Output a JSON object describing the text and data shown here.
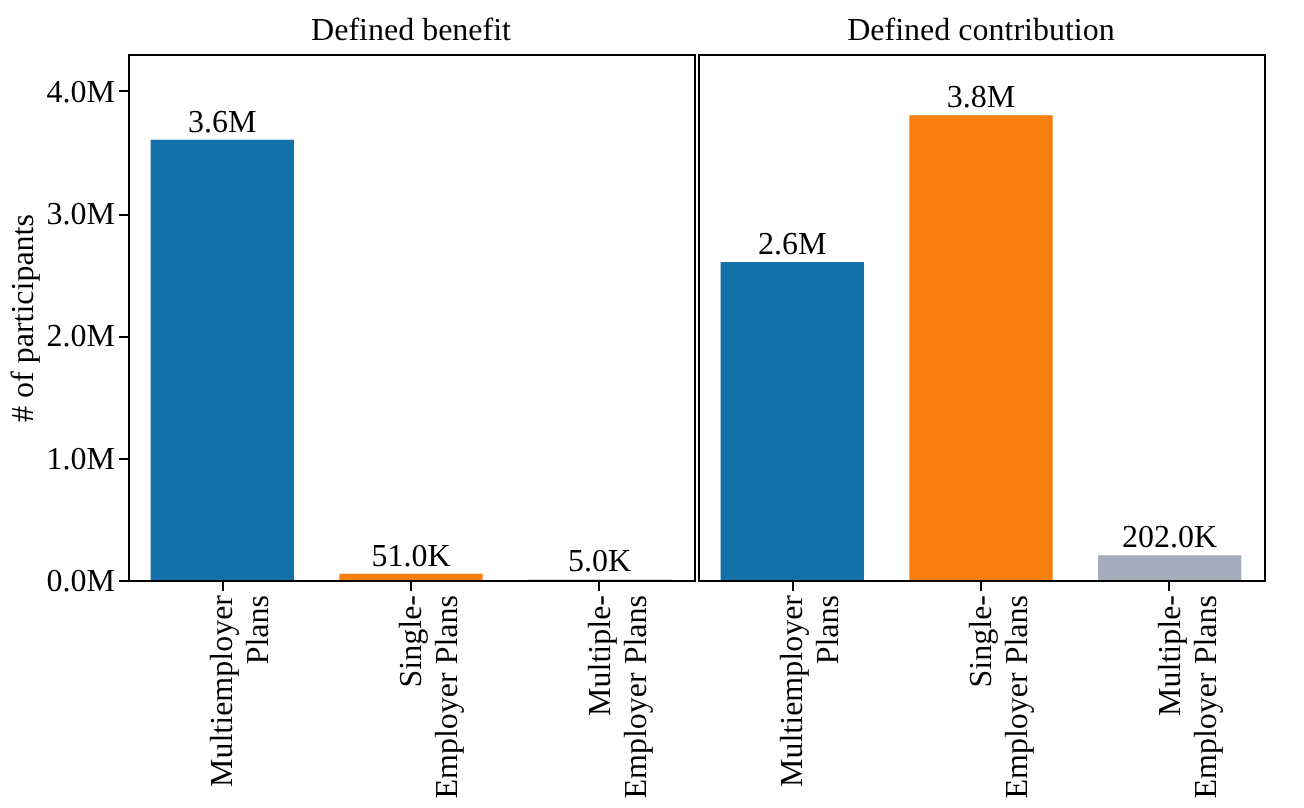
{
  "chart_data": [
    {
      "type": "bar",
      "title": "Defined benefit",
      "ylabel": "# of participants",
      "categories": [
        "Multiemployer Plans",
        "Single-Employer Plans",
        "Multiple-Employer Plans"
      ],
      "values": [
        3600000,
        51000,
        5000
      ],
      "colors": [
        "#1470a8",
        "#f78010",
        "#a3adbb"
      ],
      "value_labels": [
        "3.6M",
        "51.0K",
        "5.0K"
      ],
      "ylim": [
        0,
        4300000
      ],
      "yticks": [
        {
          "value": 0,
          "label": "0.0M"
        },
        {
          "value": 1000000,
          "label": "1.0M"
        },
        {
          "value": 2000000,
          "label": "2.0M"
        },
        {
          "value": 3000000,
          "label": "3.0M"
        },
        {
          "value": 4000000,
          "label": "4.0M"
        }
      ],
      "grid": false,
      "legend": false
    },
    {
      "type": "bar",
      "title": "Defined contribution",
      "categories": [
        "Multiemployer Plans",
        "Single-Employer Plans",
        "Multiple-Employer Plans"
      ],
      "values": [
        2600000,
        3800000,
        202000
      ],
      "colors": [
        "#1470a8",
        "#f78010",
        "#a3adbb"
      ],
      "value_labels": [
        "2.6M",
        "3.8M",
        "202.0K"
      ],
      "ylim": [
        0,
        4300000
      ],
      "tick_labels": "x",
      "grid": false,
      "legend": false
    }
  ]
}
